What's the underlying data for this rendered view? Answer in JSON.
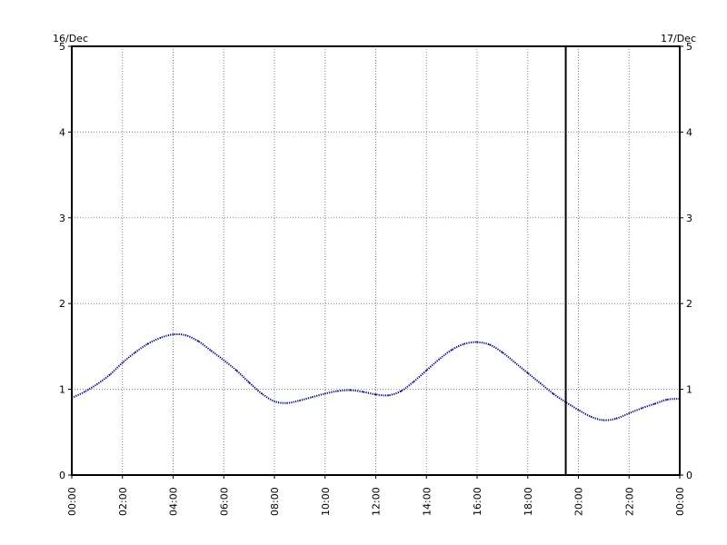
{
  "chart_data": {
    "type": "line",
    "title": "",
    "xlabel": "",
    "ylabel": "",
    "date_start_label": "16/Dec",
    "date_end_label": "17/Dec",
    "x_tick_labels": [
      "00:00",
      "02:00",
      "04:00",
      "06:00",
      "08:00",
      "10:00",
      "12:00",
      "14:00",
      "16:00",
      "18:00",
      "20:00",
      "22:00",
      "00:00"
    ],
    "y_tick_labels": [
      "0",
      "1",
      "2",
      "3",
      "4",
      "5"
    ],
    "xlim": [
      0,
      24
    ],
    "ylim": [
      0,
      5
    ],
    "grid": true,
    "marker_line_x": "19:30",
    "series": [
      {
        "color": "#0000a0",
        "x": [
          "00:00",
          "00:30",
          "01:00",
          "01:30",
          "02:00",
          "02:30",
          "03:00",
          "03:30",
          "04:00",
          "04:30",
          "05:00",
          "05:30",
          "06:00",
          "06:30",
          "07:00",
          "07:30",
          "08:00",
          "08:30",
          "09:00",
          "09:30",
          "10:00",
          "10:30",
          "11:00",
          "11:30",
          "12:00",
          "12:30",
          "13:00",
          "13:30",
          "14:00",
          "14:30",
          "15:00",
          "15:30",
          "16:00",
          "16:30",
          "17:00",
          "17:30",
          "18:00",
          "18:30",
          "19:00",
          "19:30",
          "20:00",
          "20:30",
          "21:00",
          "21:30",
          "22:00",
          "22:30",
          "23:00",
          "23:30",
          "00:00"
        ],
        "values": [
          0.9,
          0.97,
          1.06,
          1.17,
          1.31,
          1.43,
          1.53,
          1.6,
          1.64,
          1.63,
          1.56,
          1.45,
          1.34,
          1.22,
          1.08,
          0.95,
          0.86,
          0.84,
          0.87,
          0.91,
          0.95,
          0.98,
          0.99,
          0.97,
          0.94,
          0.93,
          0.98,
          1.09,
          1.22,
          1.35,
          1.46,
          1.53,
          1.55,
          1.52,
          1.43,
          1.31,
          1.19,
          1.07,
          0.95,
          0.85,
          0.76,
          0.68,
          0.64,
          0.66,
          0.72,
          0.78,
          0.83,
          0.88,
          0.89
        ]
      }
    ]
  }
}
